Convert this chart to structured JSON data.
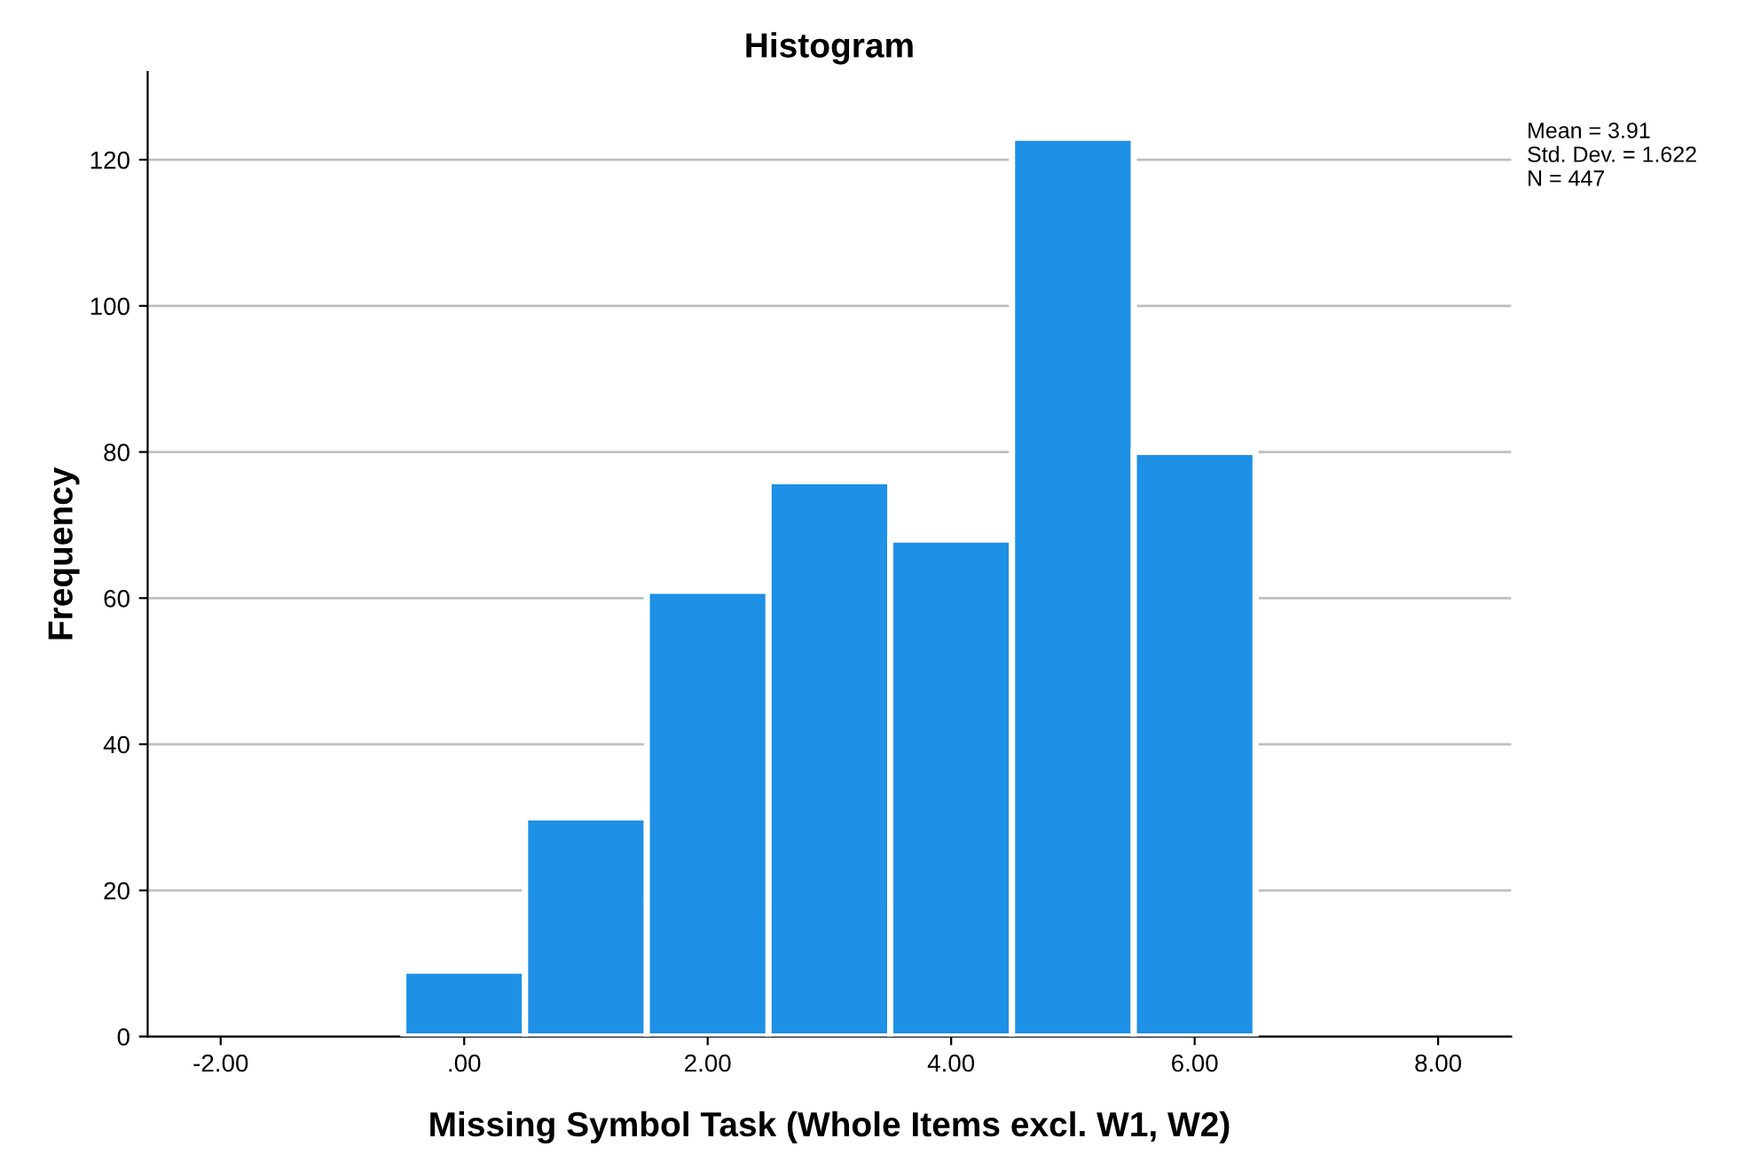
{
  "chart_data": {
    "type": "histogram",
    "title": "Histogram",
    "xlabel": "Missing Symbol Task (Whole Items excl. W1, W2)",
    "ylabel": "Frequency",
    "bins": [
      -0.5,
      0.5,
      1.5,
      2.5,
      3.5,
      4.5,
      5.5,
      6.5
    ],
    "values": [
      9,
      30,
      61,
      76,
      68,
      123,
      80
    ],
    "color": "#1e90e6",
    "xlim": [
      -2.6,
      8.6
    ],
    "xticks": [
      {
        "value": -2,
        "label": "-2.00"
      },
      {
        "value": 0,
        "label": ".00"
      },
      {
        "value": 2,
        "label": "2.00"
      },
      {
        "value": 4,
        "label": "4.00"
      },
      {
        "value": 6,
        "label": "6.00"
      },
      {
        "value": 8,
        "label": "8.00"
      }
    ],
    "ylim": [
      0,
      132
    ],
    "yticks": [
      0,
      20,
      40,
      60,
      80,
      100,
      120
    ],
    "grid": "y",
    "annotations": [
      "Mean = 3.91\nStd. Dev. = 1.622\nN = 447"
    ]
  }
}
